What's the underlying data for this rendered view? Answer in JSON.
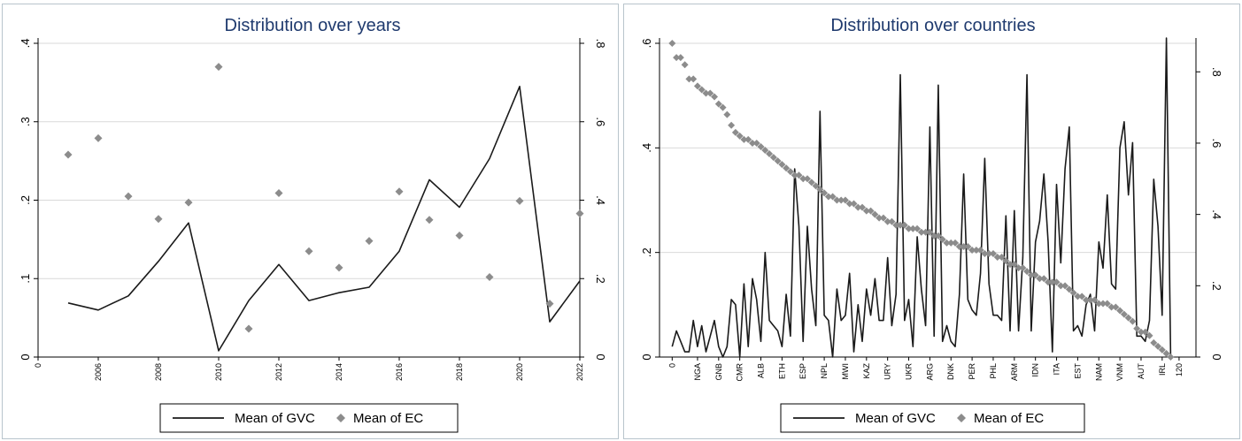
{
  "chart_data": [
    {
      "type": "line",
      "title": "Distribution over years",
      "x": [
        2005,
        2006,
        2007,
        2008,
        2009,
        2010,
        2011,
        2012,
        2013,
        2014,
        2015,
        2016,
        2017,
        2018,
        2019,
        2020,
        2021,
        2022
      ],
      "xticks": [
        2006,
        2008,
        2010,
        2012,
        2014,
        2016,
        2018,
        2020,
        2022
      ],
      "xlim": [
        2004,
        2022
      ],
      "y_left_ticks": [
        0,
        0.1,
        0.2,
        0.3,
        0.4
      ],
      "y_left_tick_labels": [
        "0",
        ".1",
        ".2",
        ".3",
        ".4"
      ],
      "ylim_left": [
        0,
        0.4
      ],
      "y_right_ticks": [
        0,
        0.2,
        0.4,
        0.6,
        0.8
      ],
      "y_right_tick_labels": [
        "0",
        ".2",
        ".4",
        ".6",
        ".8"
      ],
      "ylim_right": [
        0,
        0.8
      ],
      "grid": true,
      "legend_position": "bottom",
      "series": [
        {
          "name": "Mean of GVC",
          "kind": "line",
          "axis": "left",
          "color": "#1a1a1a",
          "values": [
            0.069,
            0.06,
            0.078,
            0.122,
            0.171,
            0.008,
            0.072,
            0.118,
            0.072,
            0.082,
            0.089,
            0.135,
            0.226,
            0.191,
            0.253,
            0.345,
            0.045,
            0.097
          ]
        },
        {
          "name": "Mean of EC",
          "kind": "scatter",
          "axis": "right",
          "color": "#8c8c8c",
          "values": [
            0.516,
            0.558,
            0.41,
            0.352,
            0.394,
            0.74,
            0.072,
            0.418,
            0.27,
            0.228,
            0.296,
            0.422,
            0.35,
            0.31,
            0.204,
            0.398,
            0.136,
            0.366
          ]
        }
      ]
    },
    {
      "type": "line",
      "title": "Distribution over countries",
      "x_start": 0,
      "xlim": [
        -3,
        124
      ],
      "xticks": [
        0,
        120
      ],
      "x_category_labels": [
        "NGA",
        "GNB",
        "CMR",
        "ALB",
        "ETH",
        "ESP",
        "NPL",
        "MWI",
        "KAZ",
        "URY",
        "UKR",
        "ARG",
        "DNK",
        "PER",
        "PHL",
        "ARM",
        "IDN",
        "ITA",
        "EST",
        "NAM",
        "VNM",
        "AUT",
        "IRL"
      ],
      "x_category_positions": [
        6,
        11,
        16,
        21,
        26,
        31,
        36,
        41,
        46,
        51,
        56,
        61,
        66,
        71,
        76,
        81,
        86,
        91,
        96,
        101,
        106,
        111,
        116
      ],
      "y_left_ticks": [
        0,
        0.2,
        0.4,
        0.6
      ],
      "y_left_tick_labels": [
        "0",
        ".2",
        ".4",
        ".6"
      ],
      "ylim_left": [
        0,
        0.6
      ],
      "y_right_ticks": [
        0,
        0.2,
        0.4,
        0.6,
        0.8
      ],
      "y_right_tick_labels": [
        "0",
        ".2",
        ".4",
        ".6",
        ".8"
      ],
      "ylim_right": [
        0,
        0.88
      ],
      "grid": true,
      "legend_position": "bottom",
      "series": [
        {
          "name": "Mean of GVC",
          "kind": "line",
          "axis": "left",
          "color": "#1a1a1a",
          "values": [
            0.02,
            0.05,
            0.03,
            0.01,
            0.01,
            0.07,
            0.02,
            0.06,
            0.01,
            0.04,
            0.07,
            0.02,
            0.0,
            0.02,
            0.11,
            0.1,
            0.0,
            0.14,
            0.02,
            0.15,
            0.11,
            0.03,
            0.2,
            0.07,
            0.06,
            0.05,
            0.02,
            0.12,
            0.04,
            0.36,
            0.25,
            0.03,
            0.25,
            0.13,
            0.06,
            0.47,
            0.08,
            0.07,
            0.0,
            0.13,
            0.07,
            0.08,
            0.16,
            0.01,
            0.1,
            0.03,
            0.13,
            0.08,
            0.15,
            0.07,
            0.07,
            0.19,
            0.06,
            0.12,
            0.54,
            0.07,
            0.11,
            0.02,
            0.23,
            0.13,
            0.06,
            0.44,
            0.04,
            0.52,
            0.03,
            0.06,
            0.03,
            0.02,
            0.12,
            0.35,
            0.11,
            0.09,
            0.08,
            0.16,
            0.38,
            0.14,
            0.08,
            0.08,
            0.07,
            0.27,
            0.05,
            0.28,
            0.05,
            0.19,
            0.54,
            0.05,
            0.22,
            0.26,
            0.35,
            0.22,
            0.01,
            0.33,
            0.18,
            0.36,
            0.44,
            0.05,
            0.06,
            0.04,
            0.1,
            0.12,
            0.05,
            0.22,
            0.17,
            0.31,
            0.14,
            0.13,
            0.4,
            0.45,
            0.31,
            0.41,
            0.04,
            0.04,
            0.03,
            0.07,
            0.34,
            0.25,
            0.08,
            0.61,
            0.0
          ]
        },
        {
          "name": "Mean of EC",
          "kind": "scatter",
          "axis": "right",
          "color": "#8c8c8c",
          "values": [
            0.88,
            0.84,
            0.84,
            0.82,
            0.78,
            0.78,
            0.76,
            0.75,
            0.74,
            0.74,
            0.73,
            0.71,
            0.7,
            0.68,
            0.65,
            0.63,
            0.62,
            0.61,
            0.61,
            0.6,
            0.6,
            0.59,
            0.58,
            0.57,
            0.56,
            0.55,
            0.54,
            0.53,
            0.52,
            0.51,
            0.51,
            0.5,
            0.5,
            0.49,
            0.48,
            0.47,
            0.46,
            0.45,
            0.45,
            0.44,
            0.44,
            0.44,
            0.43,
            0.43,
            0.42,
            0.42,
            0.41,
            0.41,
            0.4,
            0.39,
            0.39,
            0.38,
            0.38,
            0.37,
            0.37,
            0.37,
            0.36,
            0.36,
            0.36,
            0.35,
            0.35,
            0.35,
            0.34,
            0.34,
            0.33,
            0.32,
            0.32,
            0.32,
            0.31,
            0.31,
            0.31,
            0.3,
            0.3,
            0.3,
            0.29,
            0.29,
            0.29,
            0.28,
            0.28,
            0.27,
            0.26,
            0.26,
            0.25,
            0.25,
            0.24,
            0.23,
            0.23,
            0.22,
            0.22,
            0.21,
            0.21,
            0.21,
            0.2,
            0.2,
            0.19,
            0.18,
            0.17,
            0.17,
            0.16,
            0.16,
            0.16,
            0.15,
            0.15,
            0.15,
            0.14,
            0.14,
            0.13,
            0.12,
            0.11,
            0.1,
            0.08,
            0.07,
            0.07,
            0.06,
            0.04,
            0.03,
            0.02,
            0.01,
            0.0,
            0.0
          ]
        }
      ]
    }
  ],
  "colors": {
    "title": "#1f3a6e",
    "grid": "#d9d9d9",
    "axis": "#000000",
    "frame": "#b8c4cc"
  }
}
